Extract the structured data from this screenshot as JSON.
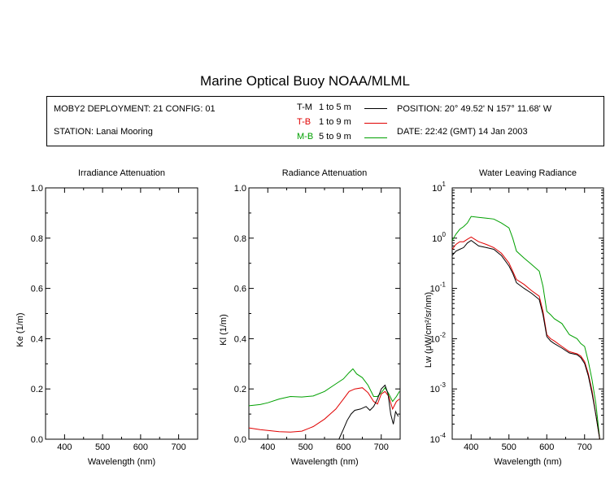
{
  "title": "Marine Optical Buoy NOAA/MLML",
  "info": {
    "deployment": "MOBY2 DEPLOYMENT: 21 CONFIG: 01",
    "station": "STATION: Lanai Mooring",
    "position": "POSITION: 20° 49.52' N   157° 11.68' W",
    "date": "DATE: 22:42 (GMT) 14 Jan 2003",
    "legend": [
      {
        "code": "T-M",
        "range": "1 to 5  m",
        "color": "#000000"
      },
      {
        "code": "T-B",
        "range": "1 to 9  m",
        "color": "#e00000"
      },
      {
        "code": "M-B",
        "range": "5 to 9  m",
        "color": "#00a000"
      }
    ]
  },
  "chart_data": [
    {
      "type": "line",
      "title": "Irradiance Attenuation",
      "xlabel": "Wavelength (nm)",
      "ylabel": "Ke  (1/m)",
      "xlim": [
        350,
        750
      ],
      "ylim": [
        0,
        1
      ],
      "xticks": [
        "400",
        "500",
        "600",
        "700"
      ],
      "yticks": [
        "0.0",
        "0.2",
        "0.4",
        "0.6",
        "0.8",
        "1.0"
      ],
      "series": []
    },
    {
      "type": "line",
      "title": "Radiance Attenuation",
      "xlabel": "Wavelength (nm)",
      "ylabel": "Kl  (1/m)",
      "xlim": [
        350,
        750
      ],
      "ylim": [
        0,
        1
      ],
      "xticks": [
        "400",
        "500",
        "600",
        "700"
      ],
      "yticks": [
        "0.0",
        "0.2",
        "0.4",
        "0.6",
        "0.8",
        "1.0"
      ],
      "series": [
        {
          "color": "#00a000",
          "x": [
            350,
            380,
            400,
            430,
            460,
            490,
            520,
            550,
            580,
            600,
            615,
            625,
            635,
            650,
            665,
            680,
            690,
            700,
            710,
            720,
            730,
            740,
            748
          ],
          "y": [
            0.133,
            0.138,
            0.145,
            0.16,
            0.17,
            0.168,
            0.172,
            0.19,
            0.22,
            0.24,
            0.265,
            0.28,
            0.26,
            0.245,
            0.215,
            0.17,
            0.17,
            0.185,
            0.205,
            0.18,
            0.15,
            0.17,
            0.19
          ]
        },
        {
          "color": "#e00000",
          "x": [
            350,
            380,
            400,
            430,
            460,
            490,
            520,
            550,
            580,
            600,
            615,
            630,
            650,
            665,
            680,
            690,
            700,
            710,
            720,
            730,
            740,
            748
          ],
          "y": [
            0.045,
            0.038,
            0.035,
            0.03,
            0.028,
            0.032,
            0.05,
            0.08,
            0.12,
            0.16,
            0.19,
            0.2,
            0.205,
            0.185,
            0.15,
            0.14,
            0.18,
            0.19,
            0.17,
            0.12,
            0.15,
            0.16
          ]
        },
        {
          "color": "#000000",
          "x": [
            588,
            600,
            610,
            620,
            630,
            645,
            660,
            670,
            680,
            690,
            700,
            710,
            718,
            725,
            732,
            738,
            745
          ],
          "y": [
            0.0,
            0.04,
            0.075,
            0.1,
            0.115,
            0.12,
            0.13,
            0.115,
            0.13,
            0.16,
            0.2,
            0.215,
            0.18,
            0.1,
            0.06,
            0.11,
            0.09
          ]
        }
      ]
    },
    {
      "type": "line",
      "title": "Water Leaving Radiance",
      "xlabel": "Wavelength (nm)",
      "ylabel": "Lw  (μW/cm²/sr/nm)",
      "xlim": [
        350,
        750
      ],
      "ylim": [
        0.0001,
        10
      ],
      "yscale": "log",
      "xticks": [
        "400",
        "500",
        "600",
        "700"
      ],
      "yticks": [
        "10^-4",
        "10^-3",
        "10^-2",
        "10^-1",
        "10^0",
        "10^1"
      ],
      "series": [
        {
          "color": "#00a000",
          "x": [
            350,
            360,
            370,
            380,
            390,
            400,
            420,
            440,
            460,
            480,
            500,
            510,
            520,
            540,
            560,
            580,
            590,
            600,
            610,
            620,
            640,
            660,
            680,
            690,
            700,
            710,
            720,
            730,
            740
          ],
          "y": [
            0.9,
            1.2,
            1.5,
            1.7,
            2.0,
            2.7,
            2.6,
            2.5,
            2.4,
            2.0,
            1.6,
            1.0,
            0.55,
            0.4,
            0.3,
            0.22,
            0.11,
            0.035,
            0.03,
            0.025,
            0.02,
            0.012,
            0.01,
            0.008,
            0.007,
            0.0035,
            0.0015,
            0.0005,
            0.0001
          ]
        },
        {
          "color": "#e00000",
          "x": [
            350,
            360,
            370,
            380,
            390,
            400,
            420,
            440,
            460,
            480,
            500,
            510,
            520,
            540,
            560,
            580,
            590,
            600,
            610,
            620,
            640,
            660,
            680,
            690,
            700,
            710,
            720,
            730,
            740
          ],
          "y": [
            0.6,
            0.75,
            0.85,
            0.85,
            0.95,
            1.05,
            0.85,
            0.75,
            0.65,
            0.5,
            0.32,
            0.22,
            0.15,
            0.12,
            0.09,
            0.07,
            0.035,
            0.012,
            0.01,
            0.009,
            0.007,
            0.0055,
            0.005,
            0.0045,
            0.0035,
            0.002,
            0.0009,
            0.0003,
            0.0001
          ]
        },
        {
          "color": "#000000",
          "x": [
            350,
            360,
            370,
            380,
            390,
            400,
            420,
            440,
            460,
            480,
            500,
            510,
            520,
            540,
            560,
            580,
            590,
            600,
            610,
            620,
            640,
            660,
            680,
            690,
            700,
            710,
            720,
            730,
            740
          ],
          "y": [
            0.45,
            0.55,
            0.6,
            0.65,
            0.8,
            0.9,
            0.7,
            0.65,
            0.6,
            0.45,
            0.28,
            0.2,
            0.13,
            0.1,
            0.08,
            0.06,
            0.03,
            0.011,
            0.009,
            0.008,
            0.0065,
            0.0052,
            0.0048,
            0.0042,
            0.0032,
            0.0018,
            0.0008,
            0.0003,
            0.0001
          ]
        }
      ]
    }
  ]
}
